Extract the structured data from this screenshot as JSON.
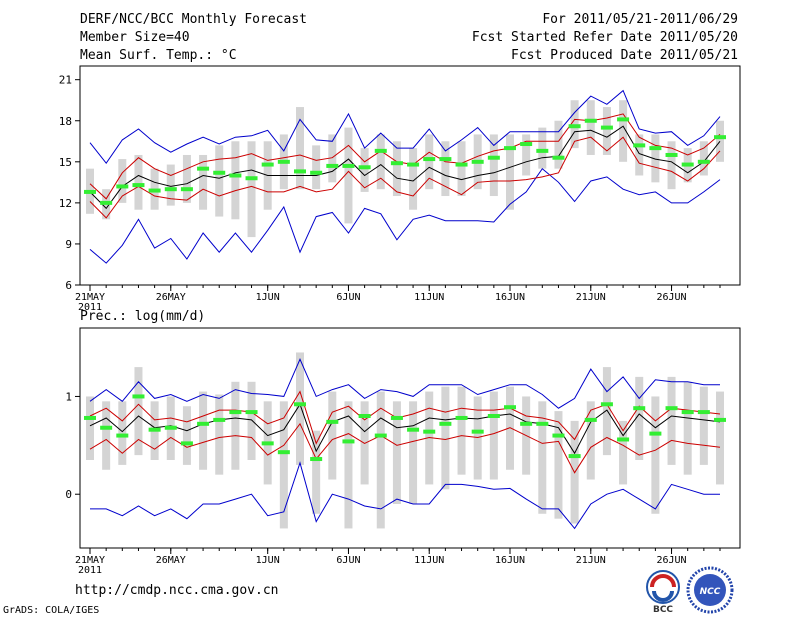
{
  "header": {
    "title": "DERF/NCC/BCC Monthly Forecast",
    "member_size": "Member Size=40",
    "variable": "Mean Surf. Temp.: °C",
    "period": "For 2011/05/21-2011/06/29",
    "started_refer": "Fcst Started Refer Date 2011/05/20",
    "produced": "Fcst Produced Date 2011/05/21"
  },
  "footer": {
    "url": "http://cmdp.ncc.cma.gov.cn",
    "credit": "GrADS: COLA/IGES",
    "logo_left": "BCC",
    "logo_right": "NCC"
  },
  "colors": {
    "blue": "#0000cc",
    "red": "#cc0000",
    "black": "#000000",
    "green": "#33ee33",
    "box": "#d4d4d4"
  },
  "chart_data": [
    {
      "type": "box",
      "title": "Mean Surf. Temp.: °C",
      "x_tick_labels": [
        "21MAY",
        "26MAY",
        "1JUN",
        "6JUN",
        "11JUN",
        "16JUN",
        "21JUN",
        "26JUN"
      ],
      "x_tick_days": [
        1,
        6,
        12,
        17,
        22,
        27,
        32,
        37
      ],
      "year_label": "2011",
      "days": 40,
      "ylim": [
        6,
        22
      ],
      "yticks": [
        6,
        9,
        12,
        15,
        18,
        21
      ],
      "series": [
        {
          "name": "max",
          "color": "blue",
          "values": [
            16.4,
            14.9,
            16.6,
            17.4,
            16.4,
            15.7,
            16.3,
            16.8,
            16.3,
            16.8,
            16.9,
            17.3,
            15.8,
            18.1,
            16.6,
            16.5,
            18.5,
            16.0,
            17.1,
            16.0,
            16.0,
            17.4,
            15.8,
            16.6,
            17.5,
            16.2,
            17.2,
            17.2,
            17.2,
            17.2,
            18.6,
            19.8,
            19.2,
            20.2,
            17.4,
            17.1,
            17.2,
            16.2,
            16.9,
            18.3
          ]
        },
        {
          "name": "upper",
          "color": "red",
          "values": [
            13.4,
            12.3,
            14.2,
            15.3,
            14.5,
            14.0,
            14.5,
            15.0,
            15.2,
            15.3,
            15.6,
            15.1,
            15.3,
            15.5,
            15.1,
            15.3,
            16.2,
            15.0,
            15.8,
            15.0,
            14.8,
            15.7,
            15.0,
            14.9,
            15.4,
            15.8,
            16.0,
            16.5,
            16.5,
            16.5,
            18.1,
            18.0,
            18.2,
            18.5,
            16.8,
            16.2,
            16.0,
            15.5,
            16.0,
            17.0
          ]
        },
        {
          "name": "mean",
          "color": "black",
          "values": [
            12.8,
            11.6,
            13.2,
            14.0,
            13.5,
            13.2,
            13.4,
            14.0,
            13.8,
            14.2,
            14.4,
            14.0,
            14.0,
            14.0,
            14.0,
            14.3,
            15.2,
            14.0,
            14.8,
            13.8,
            13.6,
            14.6,
            14.0,
            13.7,
            14.0,
            14.2,
            14.6,
            15.0,
            15.3,
            15.4,
            17.2,
            17.3,
            16.8,
            17.6,
            15.6,
            15.2,
            15.0,
            14.2,
            15.0,
            16.5
          ]
        },
        {
          "name": "lower",
          "color": "red",
          "values": [
            12.1,
            10.9,
            12.5,
            13.2,
            12.5,
            12.3,
            12.2,
            13.0,
            12.5,
            12.9,
            13.2,
            12.8,
            12.8,
            13.2,
            12.8,
            13.0,
            14.3,
            13.1,
            13.8,
            12.8,
            12.5,
            13.8,
            13.2,
            12.6,
            13.5,
            13.6,
            13.6,
            13.7,
            13.9,
            14.2,
            16.5,
            16.8,
            15.8,
            16.8,
            14.9,
            14.6,
            14.3,
            13.6,
            14.5,
            15.8
          ]
        },
        {
          "name": "min",
          "color": "blue",
          "values": [
            8.6,
            7.6,
            8.9,
            10.8,
            8.7,
            9.4,
            7.9,
            9.8,
            8.4,
            9.8,
            8.4,
            10.0,
            11.7,
            8.4,
            11.0,
            11.3,
            9.8,
            11.6,
            11.2,
            9.3,
            10.8,
            11.1,
            10.7,
            10.7,
            10.7,
            10.6,
            11.9,
            12.8,
            14.5,
            13.5,
            12.1,
            13.6,
            13.9,
            13.0,
            12.6,
            12.8,
            12.0,
            12.0,
            12.8,
            13.7
          ]
        },
        {
          "name": "ensemble",
          "color": "green",
          "values": [
            12.8,
            12.0,
            13.2,
            13.3,
            12.9,
            13.0,
            13.0,
            14.5,
            14.2,
            14.0,
            13.8,
            14.8,
            15.0,
            14.3,
            14.2,
            14.7,
            14.7,
            14.6,
            15.8,
            14.9,
            14.8,
            15.2,
            15.2,
            14.8,
            15.0,
            15.3,
            16.0,
            16.3,
            15.8,
            15.3,
            17.6,
            18.0,
            17.5,
            18.1,
            16.2,
            16.0,
            15.5,
            14.8,
            15.0,
            16.8
          ]
        }
      ],
      "box_ranges": [
        [
          11.2,
          14.5
        ],
        [
          10.8,
          13.0
        ],
        [
          12.0,
          15.2
        ],
        [
          11.5,
          15.5
        ],
        [
          11.5,
          14.5
        ],
        [
          11.8,
          14.8
        ],
        [
          12.0,
          15.5
        ],
        [
          11.5,
          15.5
        ],
        [
          11.0,
          16.2
        ],
        [
          10.8,
          16.5
        ],
        [
          9.5,
          16.5
        ],
        [
          11.5,
          16.5
        ],
        [
          13.0,
          17.0
        ],
        [
          13.0,
          19.0
        ],
        [
          13.0,
          16.2
        ],
        [
          13.5,
          17.0
        ],
        [
          10.5,
          17.5
        ],
        [
          12.8,
          16.0
        ],
        [
          13.0,
          17.0
        ],
        [
          12.5,
          16.5
        ],
        [
          11.5,
          16.0
        ],
        [
          13.0,
          17.0
        ],
        [
          12.5,
          16.5
        ],
        [
          12.5,
          16.5
        ],
        [
          13.0,
          17.0
        ],
        [
          12.5,
          17.0
        ],
        [
          11.5,
          17.0
        ],
        [
          14.0,
          17.0
        ],
        [
          14.5,
          17.5
        ],
        [
          14.5,
          18.0
        ],
        [
          16.0,
          19.5
        ],
        [
          15.5,
          19.5
        ],
        [
          15.5,
          19.0
        ],
        [
          15.0,
          19.5
        ],
        [
          14.0,
          17.0
        ],
        [
          13.5,
          17.0
        ],
        [
          13.0,
          16.5
        ],
        [
          13.5,
          16.0
        ],
        [
          14.0,
          16.5
        ],
        [
          15.0,
          18.0
        ]
      ]
    },
    {
      "type": "box",
      "title": "Prec.: log(mm/d)",
      "x_tick_labels": [
        "21MAY",
        "26MAY",
        "1JUN",
        "6JUN",
        "11JUN",
        "16JUN",
        "21JUN",
        "26JUN"
      ],
      "x_tick_days": [
        1,
        6,
        12,
        17,
        22,
        27,
        32,
        37
      ],
      "year_label": "2011",
      "days": 40,
      "ylim": [
        -0.55,
        1.7
      ],
      "yticks": [
        0,
        1
      ],
      "series": [
        {
          "name": "max",
          "color": "blue",
          "values": [
            0.95,
            1.07,
            0.95,
            1.15,
            0.98,
            1.02,
            0.95,
            1.02,
            0.98,
            1.07,
            1.03,
            1.02,
            1.0,
            1.38,
            1.0,
            1.07,
            1.12,
            0.98,
            1.07,
            1.05,
            1.0,
            1.12,
            1.12,
            1.12,
            1.02,
            1.07,
            1.12,
            1.12,
            1.02,
            0.88,
            0.98,
            1.28,
            1.05,
            1.2,
            0.98,
            1.17,
            1.15,
            1.15,
            1.12,
            1.12
          ]
        },
        {
          "name": "upper",
          "color": "red",
          "values": [
            0.8,
            0.88,
            0.75,
            0.92,
            0.76,
            0.78,
            0.74,
            0.8,
            0.86,
            0.86,
            0.84,
            0.72,
            0.78,
            1.05,
            0.52,
            0.84,
            0.9,
            0.76,
            0.88,
            0.78,
            0.82,
            0.88,
            0.84,
            0.88,
            0.86,
            0.86,
            0.88,
            0.8,
            0.78,
            0.74,
            0.56,
            0.86,
            0.92,
            0.65,
            0.9,
            0.75,
            0.88,
            0.86,
            0.84,
            0.82
          ]
        },
        {
          "name": "mean",
          "color": "black",
          "values": [
            0.7,
            0.78,
            0.64,
            0.8,
            0.68,
            0.7,
            0.65,
            0.72,
            0.76,
            0.78,
            0.76,
            0.6,
            0.66,
            0.92,
            0.44,
            0.74,
            0.8,
            0.64,
            0.78,
            0.68,
            0.7,
            0.78,
            0.76,
            0.78,
            0.77,
            0.8,
            0.82,
            0.74,
            0.72,
            0.68,
            0.42,
            0.74,
            0.86,
            0.6,
            0.82,
            0.68,
            0.8,
            0.78,
            0.76,
            0.74
          ]
        },
        {
          "name": "lower",
          "color": "red",
          "values": [
            0.46,
            0.56,
            0.42,
            0.56,
            0.46,
            0.58,
            0.48,
            0.53,
            0.58,
            0.6,
            0.58,
            0.4,
            0.5,
            0.72,
            0.36,
            0.56,
            0.62,
            0.52,
            0.6,
            0.5,
            0.54,
            0.58,
            0.56,
            0.6,
            0.58,
            0.62,
            0.68,
            0.6,
            0.52,
            0.54,
            0.22,
            0.48,
            0.58,
            0.5,
            0.4,
            0.45,
            0.55,
            0.52,
            0.5,
            0.48
          ]
        },
        {
          "name": "min",
          "color": "blue",
          "values": [
            -0.15,
            -0.15,
            -0.22,
            -0.12,
            -0.22,
            -0.15,
            -0.25,
            -0.1,
            -0.1,
            -0.05,
            0.0,
            -0.22,
            -0.18,
            0.32,
            -0.28,
            0.0,
            -0.05,
            -0.12,
            -0.15,
            -0.05,
            -0.1,
            -0.1,
            0.1,
            0.1,
            0.08,
            0.05,
            0.06,
            -0.05,
            -0.15,
            -0.15,
            -0.35,
            -0.1,
            0.0,
            0.05,
            -0.05,
            -0.15,
            0.1,
            0.05,
            0.0,
            0.0
          ]
        },
        {
          "name": "ensemble",
          "color": "green",
          "values": [
            0.78,
            0.68,
            0.6,
            1.0,
            0.66,
            0.68,
            0.52,
            0.72,
            0.76,
            0.84,
            0.84,
            0.52,
            0.43,
            0.92,
            0.36,
            0.74,
            0.54,
            0.8,
            0.6,
            0.78,
            0.66,
            0.64,
            0.72,
            0.78,
            0.64,
            0.8,
            0.89,
            0.72,
            0.72,
            0.6,
            0.39,
            0.76,
            0.92,
            0.56,
            0.88,
            0.62,
            0.88,
            0.84,
            0.84,
            0.76
          ]
        }
      ],
      "box_ranges": [
        [
          0.35,
          1.0
        ],
        [
          0.25,
          0.95
        ],
        [
          0.3,
          0.95
        ],
        [
          0.4,
          1.3
        ],
        [
          0.35,
          0.95
        ],
        [
          0.35,
          1.0
        ],
        [
          0.3,
          0.9
        ],
        [
          0.25,
          1.05
        ],
        [
          0.2,
          1.02
        ],
        [
          0.25,
          1.15
        ],
        [
          0.35,
          1.15
        ],
        [
          0.1,
          0.95
        ],
        [
          -0.35,
          0.95
        ],
        [
          0.3,
          1.45
        ],
        [
          -0.2,
          0.65
        ],
        [
          0.15,
          1.05
        ],
        [
          -0.35,
          0.95
        ],
        [
          0.1,
          0.95
        ],
        [
          -0.35,
          1.05
        ],
        [
          -0.1,
          0.95
        ],
        [
          -0.1,
          0.95
        ],
        [
          0.1,
          1.05
        ],
        [
          0.05,
          1.1
        ],
        [
          0.2,
          1.1
        ],
        [
          0.15,
          1.0
        ],
        [
          0.15,
          1.05
        ],
        [
          0.25,
          1.1
        ],
        [
          0.2,
          1.0
        ],
        [
          -0.2,
          0.95
        ],
        [
          -0.25,
          0.85
        ],
        [
          -0.3,
          0.75
        ],
        [
          0.15,
          0.95
        ],
        [
          0.4,
          1.3
        ],
        [
          0.1,
          0.75
        ],
        [
          0.35,
          1.2
        ],
        [
          -0.2,
          1.0
        ],
        [
          0.3,
          1.2
        ],
        [
          0.2,
          1.15
        ],
        [
          0.3,
          1.1
        ],
        [
          0.1,
          1.05
        ]
      ]
    }
  ]
}
